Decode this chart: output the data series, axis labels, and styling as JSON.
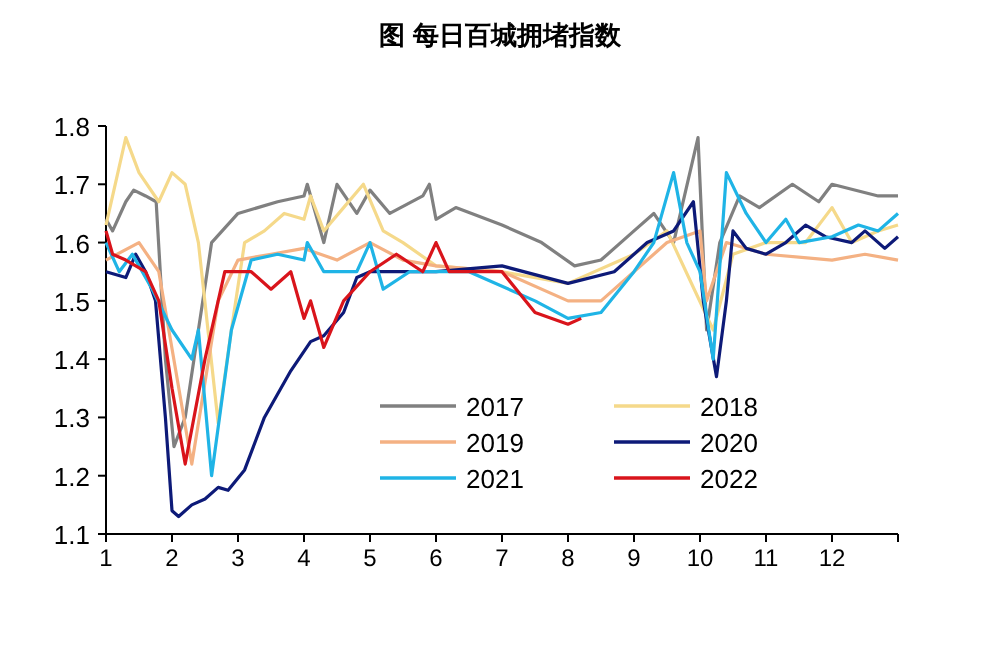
{
  "chart_data": {
    "type": "line",
    "title": "图  每日百城拥堵指数",
    "xlim": [
      1,
      13
    ],
    "xticks": [
      1,
      2,
      3,
      4,
      5,
      6,
      7,
      8,
      9,
      10,
      11,
      12,
      {
        "value": 13,
        "label": null
      }
    ],
    "ylim": [
      1.1,
      1.8
    ],
    "yticks": [
      1.1,
      1.2,
      1.3,
      1.4,
      1.5,
      1.6,
      1.7,
      1.8
    ],
    "legend": "bottom",
    "grid": false,
    "series": [
      {
        "name": "2017",
        "color": "#808080",
        "x": [
          1,
          1.1,
          1.3,
          1.42,
          1.6,
          1.76,
          1.9,
          2.03,
          2.2,
          2.6,
          3,
          3.3,
          3.6,
          4,
          4.05,
          4.3,
          4.5,
          4.8,
          5,
          5.3,
          5.8,
          5.9,
          6,
          6.3,
          7,
          7.6,
          8.1,
          8.5,
          9,
          9.3,
          9.6,
          9.97,
          10.1,
          10.3,
          10.6,
          10.9,
          11.4,
          11.8,
          12,
          12.7,
          13
        ],
        "values": [
          1.64,
          1.62,
          1.67,
          1.69,
          1.68,
          1.67,
          1.4,
          1.25,
          1.3,
          1.6,
          1.65,
          1.66,
          1.67,
          1.68,
          1.7,
          1.6,
          1.7,
          1.65,
          1.69,
          1.65,
          1.68,
          1.7,
          1.64,
          1.66,
          1.63,
          1.6,
          1.56,
          1.57,
          1.62,
          1.65,
          1.6,
          1.78,
          1.45,
          1.6,
          1.68,
          1.66,
          1.7,
          1.67,
          1.7,
          1.68,
          1.68
        ]
      },
      {
        "name": "2018",
        "color": "#f5d98a",
        "x": [
          1,
          1.3,
          1.5,
          1.8,
          2,
          2.2,
          2.4,
          2.7,
          2.9,
          3.1,
          3.4,
          3.7,
          4,
          4.1,
          4.3,
          4.6,
          4.9,
          5.2,
          5.5,
          6,
          7,
          8,
          9,
          9.5,
          10.2,
          10.5,
          11,
          11.6,
          12,
          12.3,
          12.7,
          13
        ],
        "values": [
          1.63,
          1.78,
          1.72,
          1.67,
          1.72,
          1.7,
          1.6,
          1.29,
          1.45,
          1.6,
          1.62,
          1.65,
          1.64,
          1.68,
          1.62,
          1.66,
          1.7,
          1.62,
          1.6,
          1.56,
          1.55,
          1.53,
          1.58,
          1.62,
          1.45,
          1.58,
          1.6,
          1.6,
          1.66,
          1.6,
          1.62,
          1.63
        ]
      },
      {
        "name": "2019",
        "color": "#f4b183",
        "x": [
          1,
          1.5,
          1.8,
          2.3,
          2.7,
          3,
          3.5,
          4,
          4.5,
          5,
          5.5,
          6,
          7,
          8,
          8.5,
          9.2,
          9.5,
          10,
          10.1,
          10.4,
          11,
          12,
          12.5,
          13
        ],
        "values": [
          1.57,
          1.6,
          1.55,
          1.22,
          1.5,
          1.57,
          1.58,
          1.59,
          1.57,
          1.6,
          1.57,
          1.56,
          1.55,
          1.5,
          1.5,
          1.57,
          1.6,
          1.62,
          1.5,
          1.6,
          1.58,
          1.57,
          1.58,
          1.57
        ]
      },
      {
        "name": "2020",
        "color": "#0d1a78",
        "x": [
          1,
          1.3,
          1.45,
          1.6,
          1.75,
          1.9,
          2,
          2.1,
          2.3,
          2.5,
          2.7,
          2.85,
          3.1,
          3.4,
          3.8,
          4.1,
          4.3,
          4.6,
          4.8,
          5,
          6,
          7,
          8,
          8.7,
          9.2,
          9.6,
          9.9,
          10.05,
          10.25,
          10.4,
          10.5,
          10.7,
          11,
          11.3,
          11.6,
          11.9,
          12.3,
          12.5,
          12.8,
          13
        ],
        "values": [
          1.55,
          1.54,
          1.58,
          1.55,
          1.5,
          1.3,
          1.14,
          1.13,
          1.15,
          1.16,
          1.18,
          1.175,
          1.21,
          1.3,
          1.38,
          1.43,
          1.44,
          1.48,
          1.54,
          1.55,
          1.55,
          1.56,
          1.53,
          1.55,
          1.6,
          1.62,
          1.67,
          1.5,
          1.37,
          1.5,
          1.62,
          1.59,
          1.58,
          1.6,
          1.63,
          1.61,
          1.6,
          1.62,
          1.59,
          1.61
        ]
      },
      {
        "name": "2021",
        "color": "#1fb4e6",
        "x": [
          1,
          1.2,
          1.4,
          1.7,
          2,
          2.3,
          2.4,
          2.6,
          2.9,
          3.2,
          3.6,
          4,
          4.05,
          4.3,
          4.8,
          5,
          5.2,
          5.6,
          6.5,
          7.5,
          8,
          8.5,
          9,
          9.3,
          9.6,
          9.8,
          10,
          10.2,
          10.4,
          10.7,
          11,
          11.3,
          11.5,
          12,
          12.4,
          12.7,
          13
        ],
        "values": [
          1.6,
          1.55,
          1.58,
          1.52,
          1.45,
          1.4,
          1.45,
          1.2,
          1.45,
          1.57,
          1.58,
          1.57,
          1.6,
          1.55,
          1.55,
          1.6,
          1.52,
          1.55,
          1.55,
          1.5,
          1.47,
          1.48,
          1.55,
          1.6,
          1.72,
          1.6,
          1.55,
          1.4,
          1.72,
          1.65,
          1.6,
          1.64,
          1.6,
          1.61,
          1.63,
          1.62,
          1.65
        ]
      },
      {
        "name": "2022",
        "color": "#d9141b",
        "x": [
          1,
          1.1,
          1.3,
          1.6,
          1.8,
          2,
          2.2,
          2.5,
          2.8,
          3.2,
          3.5,
          3.8,
          4,
          4.1,
          4.3,
          4.6,
          5,
          5.4,
          5.8,
          6,
          6.2,
          7,
          7.5,
          8,
          8.2
        ],
        "values": [
          1.62,
          1.58,
          1.57,
          1.55,
          1.5,
          1.35,
          1.22,
          1.4,
          1.55,
          1.55,
          1.52,
          1.55,
          1.47,
          1.5,
          1.42,
          1.5,
          1.55,
          1.58,
          1.55,
          1.6,
          1.55,
          1.55,
          1.48,
          1.46,
          1.47
        ]
      }
    ]
  }
}
